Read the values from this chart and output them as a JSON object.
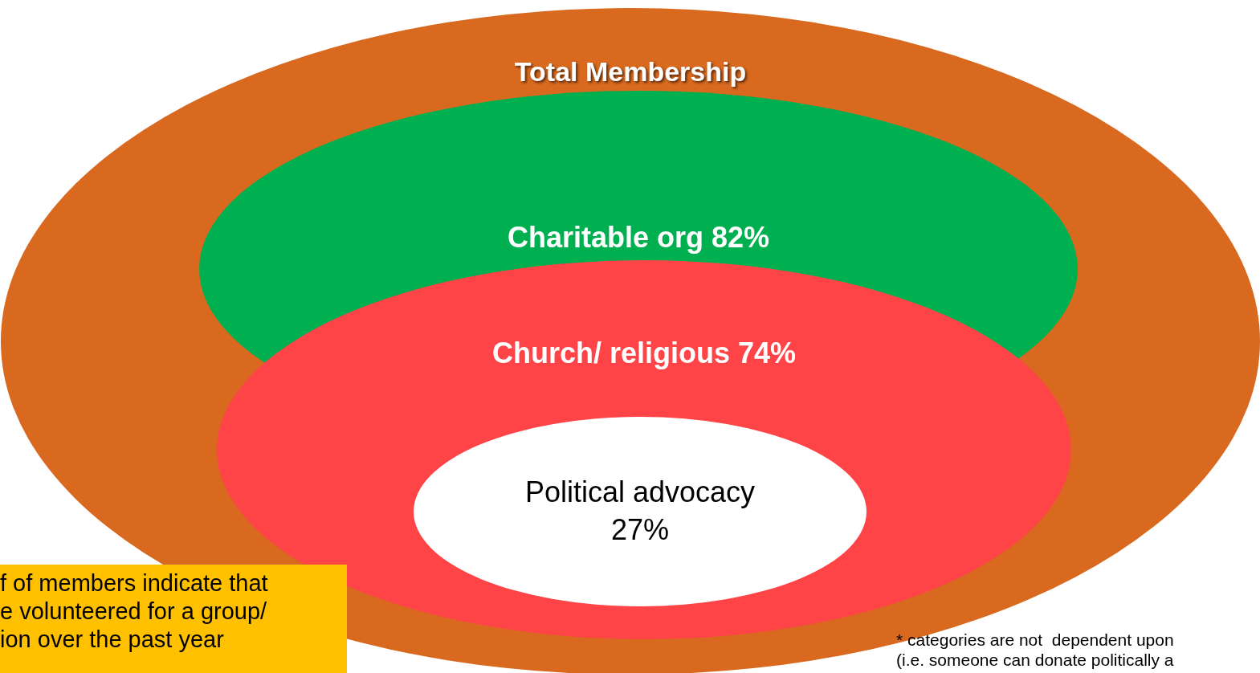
{
  "chart_data": {
    "type": "other",
    "categories": [
      "Total Membership",
      "Charitable org",
      "Church/ religious",
      "Political advocacy"
    ],
    "values": [
      null,
      82,
      74,
      27
    ],
    "value_labels": [
      null,
      "82%",
      "74%",
      "27%"
    ],
    "colors": [
      "#d8691f",
      "#00b050",
      "#ff4448",
      "#ffffff"
    ],
    "annotations": [
      "f of members indicate that\ne volunteered for a group/\nion over the past year",
      "* categories are not  dependent upon\n(i.e. someone can donate politically a"
    ]
  }
}
